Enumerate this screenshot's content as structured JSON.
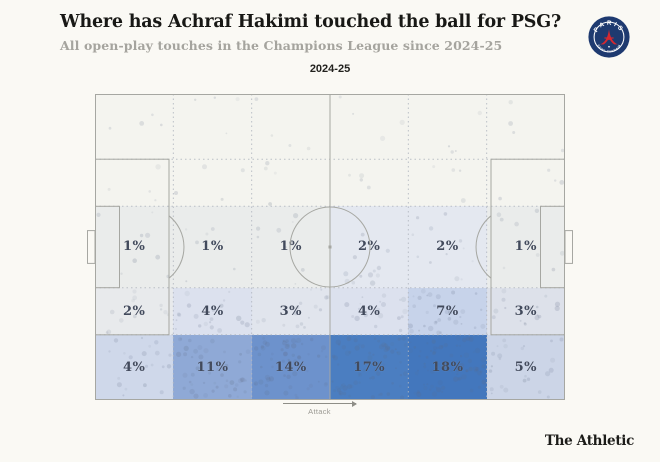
{
  "page": {
    "background": "#faf9f4"
  },
  "header": {
    "title": "Where has Achraf Hakimi touched the ball for PSG?",
    "subtitle": "All open-play touches in the Champions League since 2024-25"
  },
  "badge": {
    "club": "Paris Saint-Germain",
    "top_text": "PARIS",
    "bottom_text": "SAINT-GERMAIN",
    "navy": "#1e3a70",
    "red": "#d7282f",
    "white": "#ffffff"
  },
  "footer": {
    "brand": "The Athletic"
  },
  "chart_data": {
    "type": "heatmap",
    "title": "2024-25",
    "subject": "Achraf Hakimi share of open-play touches by pitch zone for PSG",
    "unit": "%",
    "attack_label": "Attack",
    "attack_direction": "right",
    "grid": {
      "cols": 6,
      "rows": 5,
      "row_bands": [
        "wide-top",
        "halfspace-top",
        "central",
        "halfspace-bottom",
        "wide-bottom"
      ]
    },
    "zone_percentages": [
      [
        null,
        null,
        null,
        null,
        null,
        null
      ],
      [
        null,
        null,
        null,
        null,
        null,
        null
      ],
      [
        1,
        1,
        1,
        2,
        2,
        1
      ],
      [
        2,
        4,
        3,
        4,
        7,
        3
      ],
      [
        4,
        11,
        14,
        17,
        18,
        5
      ]
    ],
    "zone_labels": [
      [
        "",
        "",
        "",
        "",
        "",
        ""
      ],
      [
        "",
        "",
        "",
        "",
        "",
        ""
      ],
      [
        "1%",
        "1%",
        "1%",
        "2%",
        "2%",
        "1%"
      ],
      [
        "2%",
        "4%",
        "3%",
        "4%",
        "7%",
        "3%"
      ],
      [
        "4%",
        "11%",
        "14%",
        "17%",
        "18%",
        "5%"
      ]
    ],
    "zone_colors": [
      [
        "#f4f4ef",
        "#f4f4ef",
        "#f4f4ef",
        "#f4f4ef",
        "#f4f4ef",
        "#f4f4ef"
      ],
      [
        "#f4f4ef",
        "#f4f4ef",
        "#f4f4ef",
        "#f4f4ef",
        "#f4f4ef",
        "#f4f4ef"
      ],
      [
        "#eaeceb",
        "#eaeceb",
        "#eaeceb",
        "#e4e8f0",
        "#e4e8f0",
        "#eaeceb"
      ],
      [
        "#e8eaec",
        "#dce1ee",
        "#e1e5ed",
        "#dce1ee",
        "#c7d3ea",
        "#dde1ea"
      ],
      [
        "#cfd8ea",
        "#8fa9d6",
        "#6d92cc",
        "#4b7ec1",
        "#4377bd",
        "#ccd5e7"
      ]
    ],
    "heat_scale": {
      "low": "#f4f4ef",
      "high": "#4377bd"
    },
    "label_color": "#424a5c",
    "pitch_line_color": "#a6a7a2",
    "grid_dot_color": "#b2b7c0",
    "touch_dot_color": "#5f6c84"
  }
}
